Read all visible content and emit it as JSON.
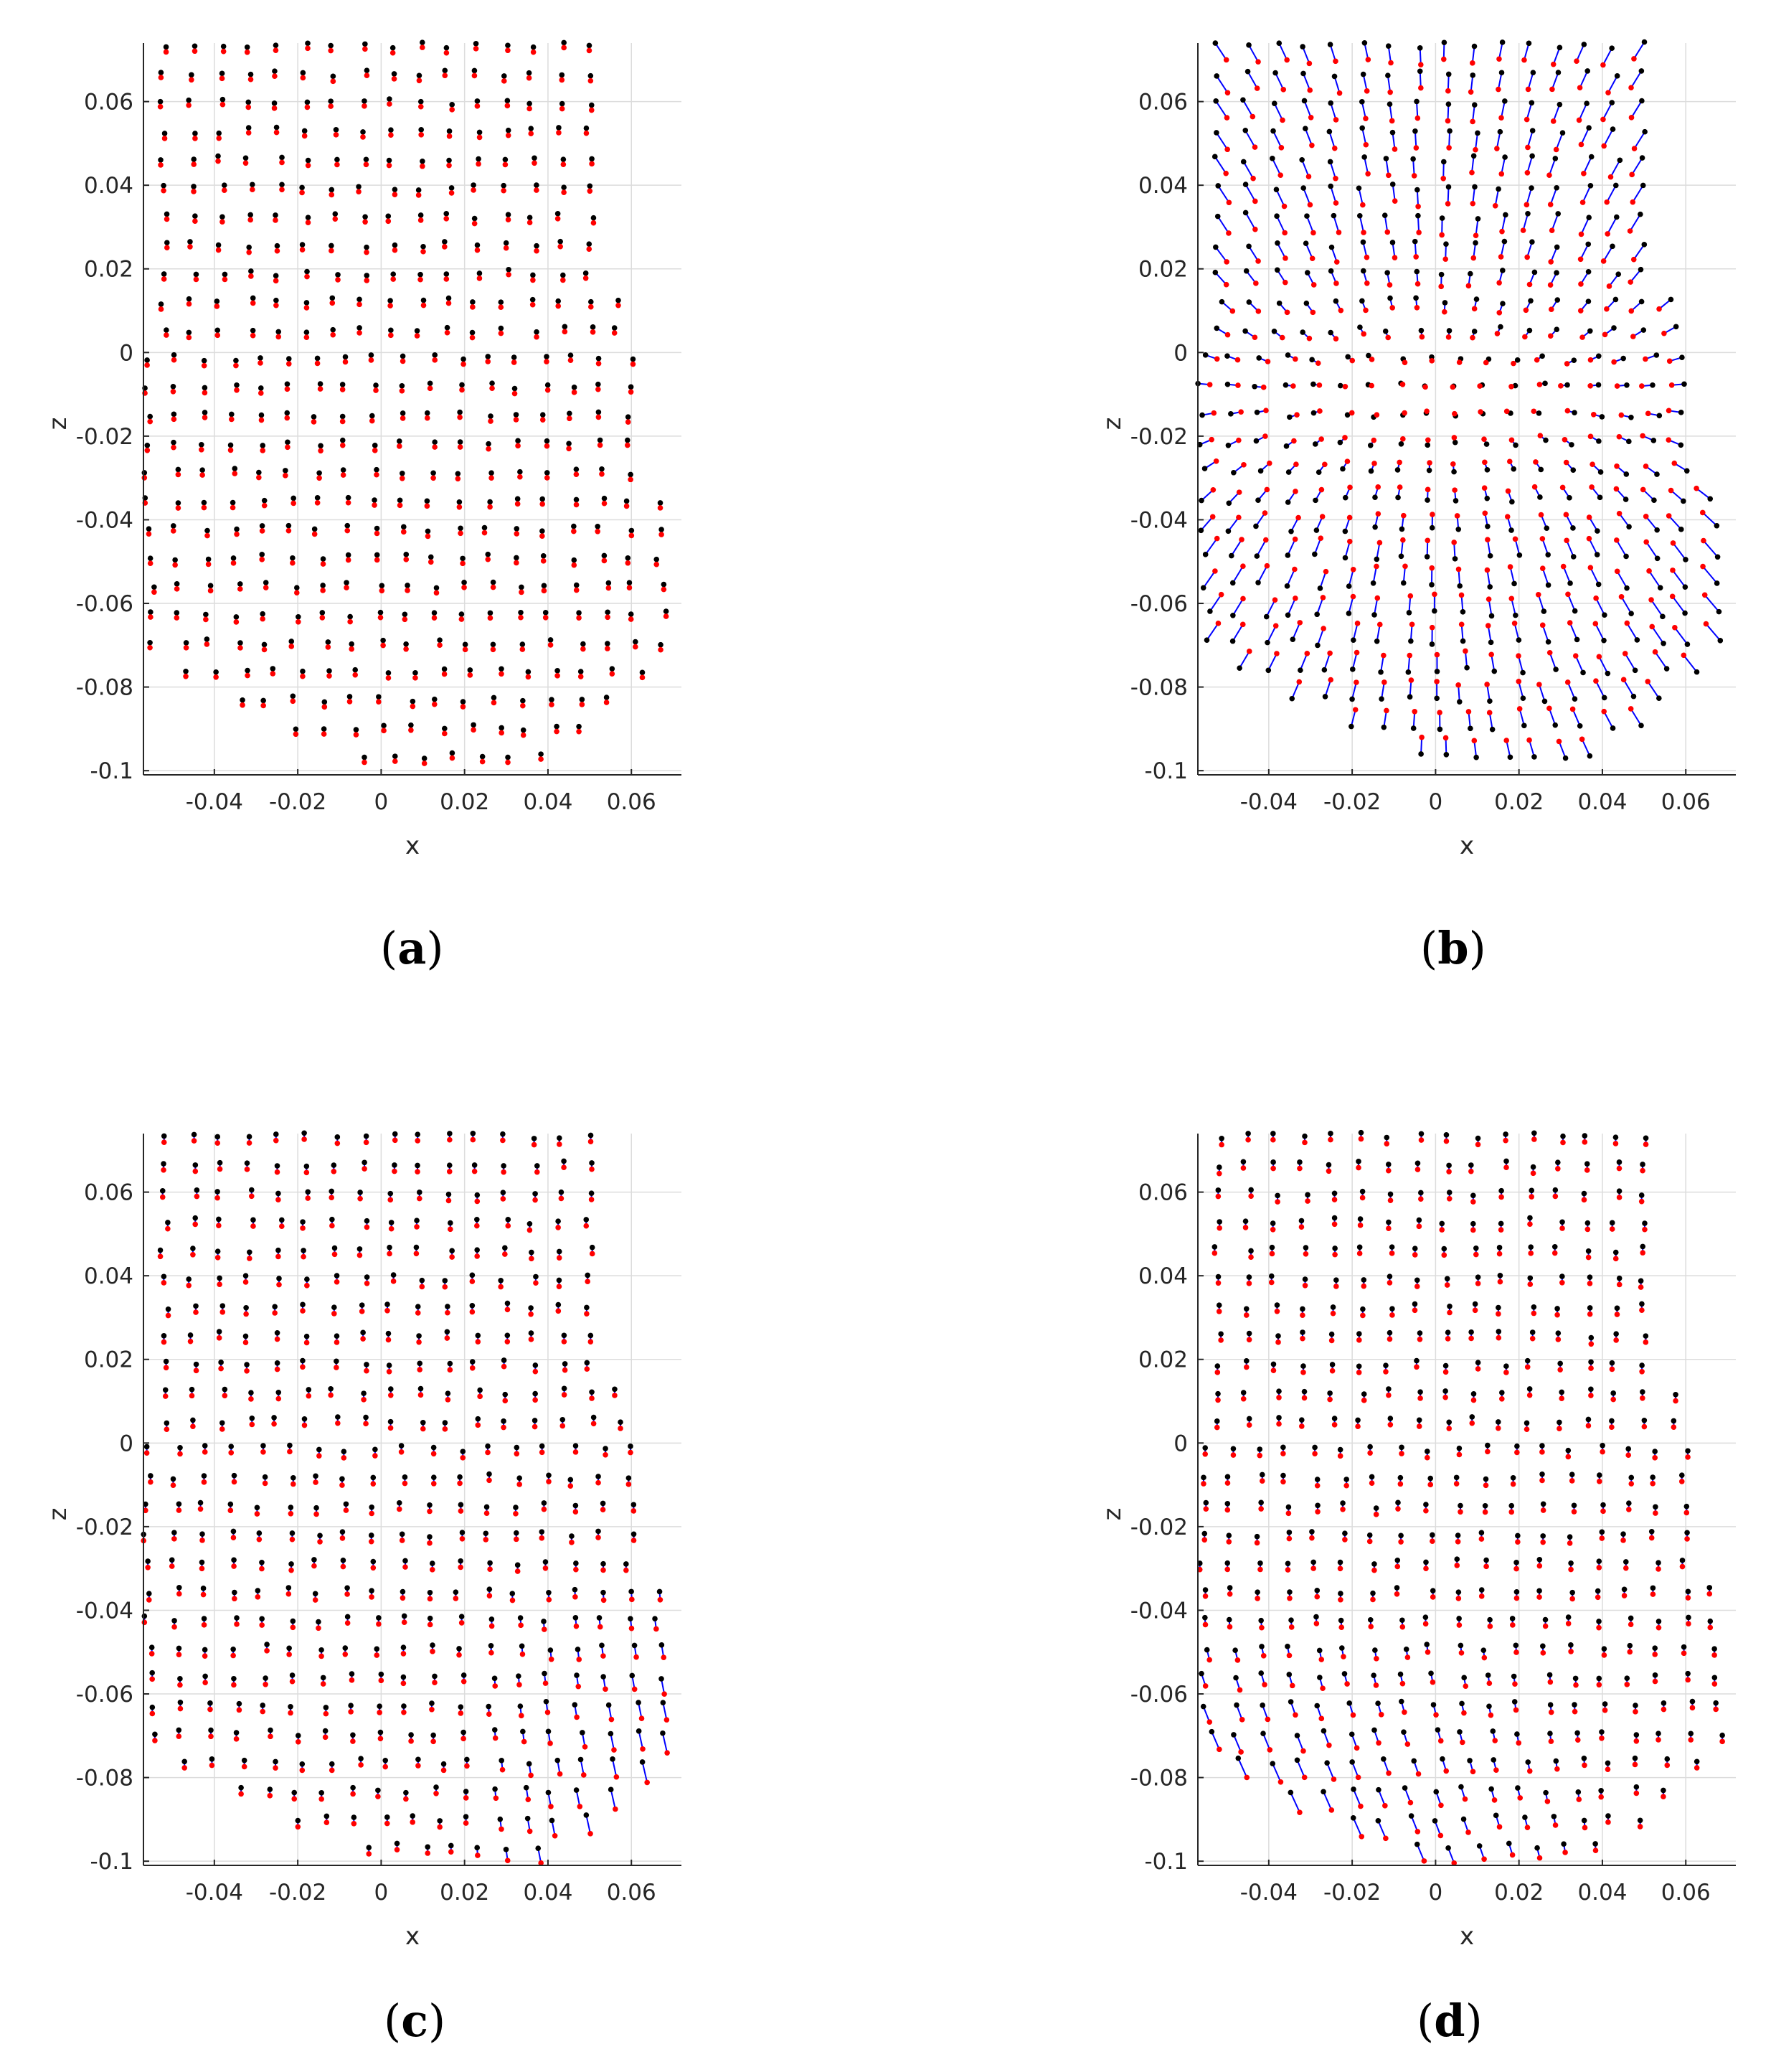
{
  "chart_data": [
    {
      "type": "scatter",
      "panel": "a",
      "xlabel": "x",
      "ylabel": "z",
      "xlim": [
        -0.057,
        0.072
      ],
      "ylim": [
        -0.101,
        0.074
      ],
      "xticks": [
        "-0.04",
        "-0.02",
        "0",
        "0.02",
        "0.04",
        "0.06"
      ],
      "yticks": [
        "0.06",
        "0.04",
        "0.02",
        "0",
        "-0.02",
        "-0.04",
        "-0.06",
        "-0.08",
        "-0.1"
      ],
      "grid": true,
      "series": [
        {
          "color": "#000000",
          "marker": "point"
        },
        {
          "color": "#ff0000",
          "marker": "point"
        },
        {
          "color": "#0000ff",
          "marker": "vector"
        }
      ],
      "displacement": "small",
      "caption": "a"
    },
    {
      "type": "scatter",
      "panel": "b",
      "xlabel": "x",
      "ylabel": "z",
      "xlim": [
        -0.057,
        0.072
      ],
      "ylim": [
        -0.101,
        0.074
      ],
      "xticks": [
        "-0.04",
        "-0.02",
        "0",
        "0.02",
        "0.04",
        "0.06"
      ],
      "yticks": [
        "0.06",
        "0.04",
        "0.02",
        "0",
        "-0.02",
        "-0.04",
        "-0.06",
        "-0.08",
        "-0.1"
      ],
      "grid": true,
      "series": [
        {
          "color": "#000000",
          "marker": "point"
        },
        {
          "color": "#ff0000",
          "marker": "point"
        },
        {
          "color": "#0000ff",
          "marker": "vector"
        }
      ],
      "displacement": "converging-center",
      "caption": "b"
    },
    {
      "type": "scatter",
      "panel": "c",
      "xlabel": "x",
      "ylabel": "z",
      "xlim": [
        -0.057,
        0.072
      ],
      "ylim": [
        -0.101,
        0.074
      ],
      "xticks": [
        "-0.04",
        "-0.02",
        "0",
        "0.02",
        "0.04",
        "0.06"
      ],
      "yticks": [
        "0.06",
        "0.04",
        "0.02",
        "0",
        "-0.02",
        "-0.04",
        "-0.06",
        "-0.08",
        "-0.1"
      ],
      "grid": true,
      "series": [
        {
          "color": "#000000",
          "marker": "point"
        },
        {
          "color": "#ff0000",
          "marker": "point"
        },
        {
          "color": "#0000ff",
          "marker": "vector"
        }
      ],
      "displacement": "lower-right",
      "caption": "c"
    },
    {
      "type": "scatter",
      "panel": "d",
      "xlabel": "x",
      "ylabel": "z",
      "xlim": [
        -0.057,
        0.072
      ],
      "ylim": [
        -0.101,
        0.074
      ],
      "xticks": [
        "-0.04",
        "-0.02",
        "0",
        "0.02",
        "0.04",
        "0.06"
      ],
      "yticks": [
        "0.06",
        "0.04",
        "0.02",
        "0",
        "-0.02",
        "-0.04",
        "-0.06",
        "-0.08",
        "-0.1"
      ],
      "grid": true,
      "series": [
        {
          "color": "#000000",
          "marker": "point"
        },
        {
          "color": "#ff0000",
          "marker": "point"
        },
        {
          "color": "#0000ff",
          "marker": "vector"
        }
      ],
      "displacement": "lower-left",
      "caption": "d"
    }
  ]
}
